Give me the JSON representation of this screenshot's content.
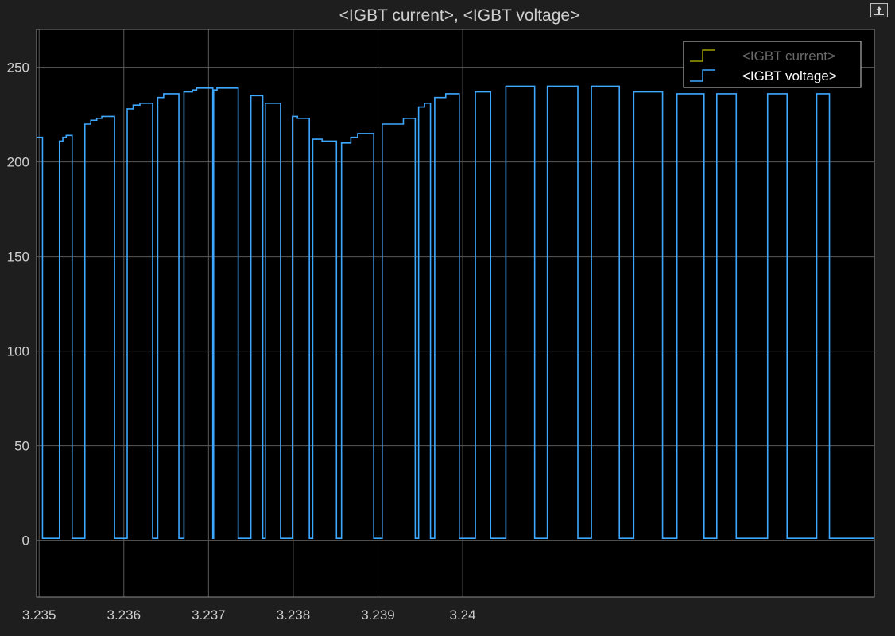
{
  "window": {
    "title": "<IGBT current>, <IGBT voltage>"
  },
  "toolbar": {
    "undock_icon": "undock-icon"
  },
  "colors": {
    "background": "#000000",
    "frame": "#1e1e1e",
    "grid": "#5a5a5a",
    "text": "#cfcfcf",
    "current": "#a0a000",
    "voltage": "#3ea8ff"
  },
  "chart_data": {
    "type": "line",
    "title": "<IGBT current>, <IGBT voltage>",
    "xlabel": "",
    "ylabel": "",
    "xlim": [
      3.23497,
      3.24486
    ],
    "ylim": [
      -30,
      270
    ],
    "grid": true,
    "legend_position": "top-right",
    "x_ticks": [
      3.235,
      3.236,
      3.237,
      3.238,
      3.239,
      3.24
    ],
    "x_tick_labels": [
      "3.235",
      "3.236",
      "3.237",
      "3.238",
      "3.239",
      "3.24"
    ],
    "y_ticks": [
      0,
      50,
      100,
      150,
      200,
      250
    ],
    "y_tick_labels": [
      "0",
      "50",
      "100",
      "150",
      "200",
      "250"
    ],
    "series": [
      {
        "name": "<IGBT current>",
        "color": "#a0a000",
        "legend_label": "<IGBT current>",
        "visible": false,
        "x": [],
        "y": []
      },
      {
        "name": "<IGBT voltage>",
        "color": "#3ea8ff",
        "legend_label": "<IGBT voltage>",
        "visible": true,
        "style": "step",
        "low_value": 1,
        "x": [
          3.23497,
          3.23504,
          3.23504,
          3.23524,
          3.23524,
          3.23528,
          3.23528,
          3.23532,
          3.23532,
          3.23539,
          3.23539,
          3.23554,
          3.23554,
          3.23561,
          3.23561,
          3.23568,
          3.23568,
          3.23574,
          3.23574,
          3.23589,
          3.23589,
          3.23604,
          3.23604,
          3.23611,
          3.23611,
          3.23619,
          3.23619,
          3.23634,
          3.23634,
          3.2364,
          3.2364,
          3.23647,
          3.23647,
          3.23665,
          3.23665,
          3.23671,
          3.23671,
          3.23681,
          3.23681,
          3.23686,
          3.23686,
          3.23705,
          3.23705,
          3.23706,
          3.23706,
          3.2371,
          3.2371,
          3.23735,
          3.23735,
          3.2375,
          3.2375,
          3.23764,
          3.23764,
          3.23767,
          3.23767,
          3.23785,
          3.23785,
          3.23799,
          3.23799,
          3.23805,
          3.23805,
          3.23819,
          3.23819,
          3.23823,
          3.23823,
          3.23834,
          3.23834,
          3.23851,
          3.23851,
          3.23857,
          3.23857,
          3.23868,
          3.23868,
          3.23876,
          3.23876,
          3.23895,
          3.23895,
          3.23905,
          3.23905,
          3.2393,
          3.2393,
          3.23944,
          3.23944,
          3.23948,
          3.23948,
          3.23955,
          3.23955,
          3.23962,
          3.23962,
          3.23967,
          3.23967,
          3.2398,
          3.2398,
          3.23996,
          3.23996,
          3.24015,
          3.24015,
          3.24033,
          3.24033,
          3.24051,
          3.24051,
          3.24085,
          3.24085,
          3.241,
          3.241,
          3.24136,
          3.24136,
          3.24152,
          3.24152,
          3.24185,
          3.24185,
          3.24202,
          3.24202,
          3.24236,
          3.24236,
          3.24253,
          3.24253,
          3.24285,
          3.24285,
          3.243,
          3.243,
          3.24323,
          3.24323,
          3.2436,
          3.2436,
          3.24383,
          3.24383,
          3.24418,
          3.24418,
          3.24433,
          3.24433,
          3.2447,
          3.2447,
          3.24486
        ],
        "y": [
          213,
          213,
          1,
          1,
          211,
          211,
          213,
          213,
          214,
          214,
          1,
          1,
          220,
          220,
          222,
          222,
          223,
          223,
          224,
          224,
          1,
          1,
          228,
          228,
          230,
          230,
          231,
          231,
          1,
          1,
          234,
          234,
          236,
          236,
          1,
          1,
          237,
          237,
          238,
          238,
          239,
          239,
          1,
          1,
          238,
          238,
          239,
          239,
          1,
          1,
          235,
          235,
          1,
          1,
          231,
          231,
          1,
          1,
          224,
          224,
          223,
          223,
          1,
          1,
          212,
          212,
          211,
          211,
          1,
          1,
          210,
          210,
          213,
          213,
          215,
          215,
          1,
          1,
          220,
          220,
          223,
          223,
          1,
          1,
          229,
          229,
          231,
          231,
          1,
          1,
          234,
          234,
          236,
          236,
          1,
          1,
          237,
          237,
          1,
          1,
          240,
          240,
          1,
          1,
          240,
          240,
          1,
          1,
          240,
          240,
          1,
          1,
          237,
          237,
          1,
          1,
          236,
          236,
          1,
          1,
          236,
          236,
          1,
          1,
          236,
          236,
          1,
          1,
          236,
          236,
          1,
          1,
          1,
          1
        ]
      }
    ]
  }
}
